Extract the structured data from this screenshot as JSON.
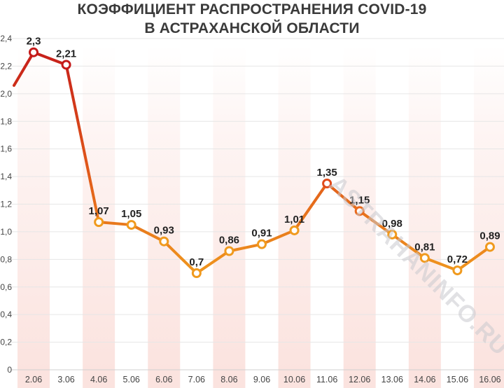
{
  "title": {
    "line1": "КОЭФФИЦИЕНТ РАСПРОСТРАНЕНИЯ COVID-19",
    "line2": "В АСТРАХАНСКОЙ ОБЛАСТИ"
  },
  "watermark": "ASTRAHANINFO.RU",
  "colors": {
    "red": "#c41a1a",
    "orange": "#f09a1e",
    "band": "#fbe3df",
    "grid": "#e6e6e6",
    "axis_text": "#444444",
    "label_text": "#222222"
  },
  "chart_data": {
    "type": "line",
    "categories": [
      "2.06",
      "3.06",
      "4.06",
      "5.06",
      "6.06",
      "7.06",
      "8.06",
      "9.06",
      "10.06",
      "11.06",
      "12.06",
      "13.06",
      "14.06",
      "15.06",
      "16.06"
    ],
    "values": [
      2.3,
      2.21,
      1.07,
      1.05,
      0.93,
      0.7,
      0.86,
      0.91,
      1.01,
      1.35,
      1.15,
      0.98,
      0.81,
      0.72,
      0.89
    ],
    "data_labels": [
      "2,3",
      "2,21",
      "1,07",
      "1,05",
      "0,93",
      "0,7",
      "0,86",
      "0,91",
      "1,01",
      "1,35",
      "1,15",
      "0,98",
      "0,81",
      "0,72",
      "0,89"
    ],
    "line_enters_from_left_at": 2.06,
    "ylim": [
      0,
      2.4
    ],
    "yticks": [
      0,
      0.2,
      0.4,
      0.6,
      0.8,
      1.0,
      1.2,
      1.4,
      1.6,
      1.8,
      2.0,
      2.2,
      2.4
    ],
    "ytick_labels": [
      "0",
      "0,2",
      "0,4",
      "0,6",
      "0,8",
      "1,0",
      "1,2",
      "1,4",
      "1,6",
      "1,8",
      "2,0",
      "2,2",
      "2,4"
    ],
    "grid": true,
    "legend": "none",
    "xlabel": "",
    "ylabel": ""
  }
}
